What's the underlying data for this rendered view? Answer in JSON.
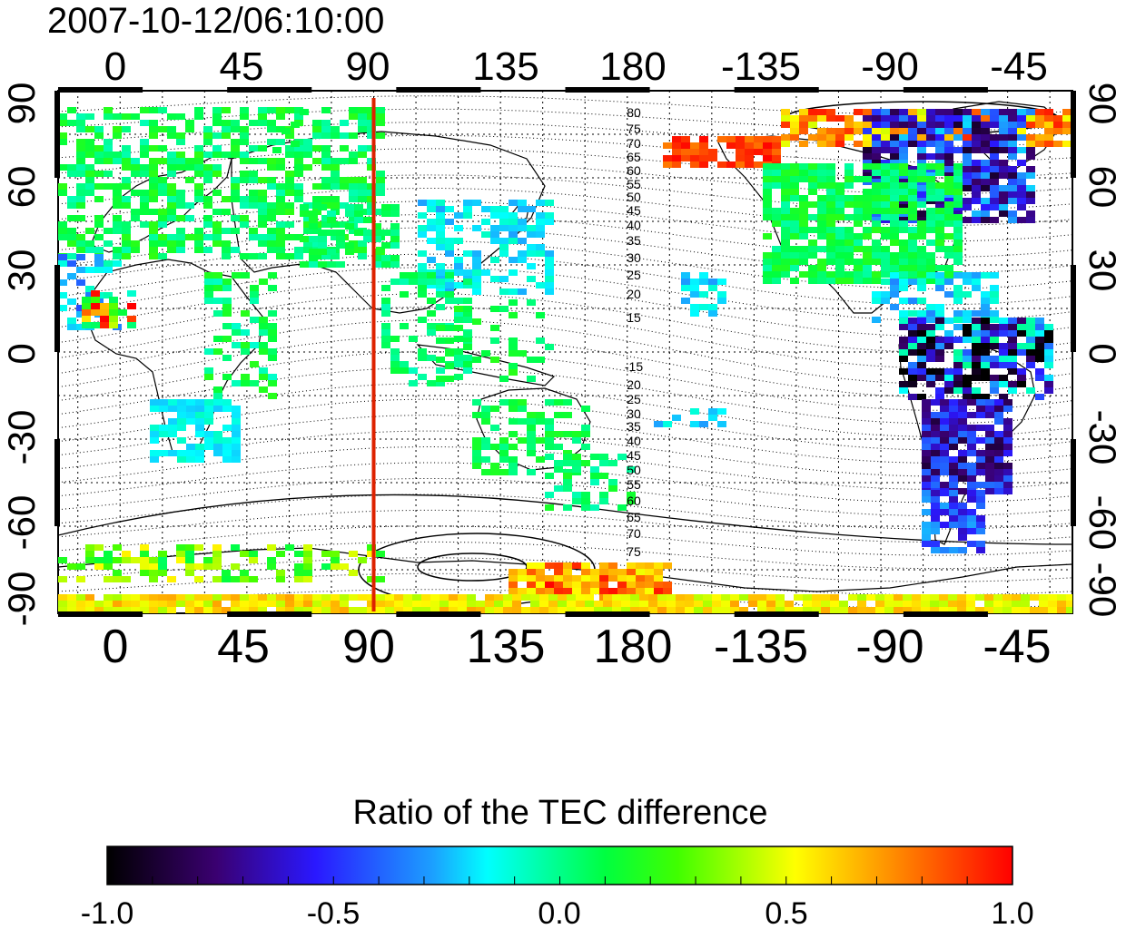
{
  "timestamp": "2007-10-12/06:10:00",
  "lon_labels": [
    "0",
    "45",
    "90",
    "135",
    "180",
    "-135",
    "-90",
    "-45"
  ],
  "lat_labels": [
    "90",
    "60",
    "30",
    "0",
    "-30",
    "-60",
    "-90"
  ],
  "contour_labels": {
    "north": [
      "80",
      "75",
      "70",
      "65",
      "60",
      "55",
      "50",
      "45",
      "40",
      "35",
      "30",
      "25",
      "20",
      "15"
    ],
    "south": [
      "-15",
      "20",
      "25",
      "30",
      "35",
      "40",
      "45",
      "50",
      "55",
      "60",
      "65",
      "70",
      "75"
    ]
  },
  "marker_longitude": 90,
  "colorbar": {
    "title": "Ratio of the TEC difference",
    "tick_labels": [
      "-1.0",
      "-0.5",
      "0.0",
      "0.5",
      "1.0"
    ],
    "min": -1.0,
    "max": 1.0
  },
  "colors": {
    "marker_line": "#dd2200",
    "colormap": [
      "#000000",
      "#3a0070",
      "#2020ff",
      "#00ffff",
      "#00ff00",
      "#ffff00",
      "#ff8800",
      "#ff0000"
    ]
  }
}
